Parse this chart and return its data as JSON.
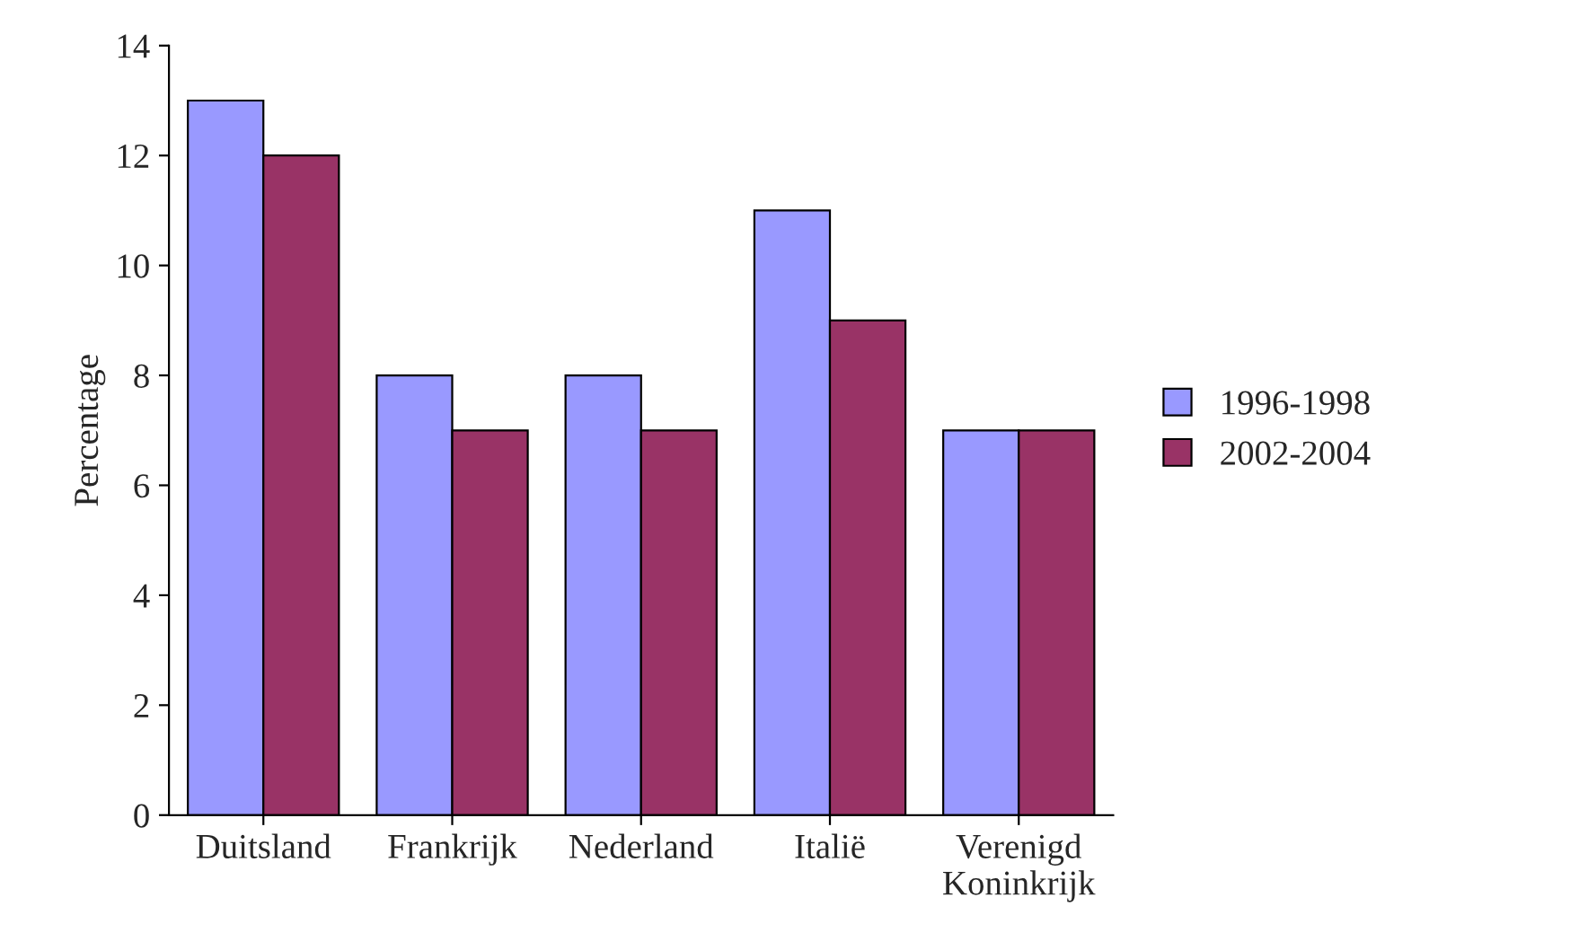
{
  "chart_data": {
    "type": "bar",
    "ylabel": "Percentage",
    "categories": [
      "Duitsland",
      "Frankrijk",
      "Nederland",
      "Italië",
      "Verenigd\nKoninkrijk"
    ],
    "series": [
      {
        "name": "1996-1998",
        "color": "#9999ff",
        "values": [
          13,
          8,
          8,
          11,
          7
        ]
      },
      {
        "name": "2002-2004",
        "color": "#993366",
        "values": [
          12,
          7,
          7,
          9,
          7
        ]
      }
    ],
    "ylim": [
      0,
      14
    ],
    "yticks": [
      0,
      2,
      4,
      6,
      8,
      10,
      12,
      14
    ],
    "grid": false,
    "legend": "right"
  }
}
